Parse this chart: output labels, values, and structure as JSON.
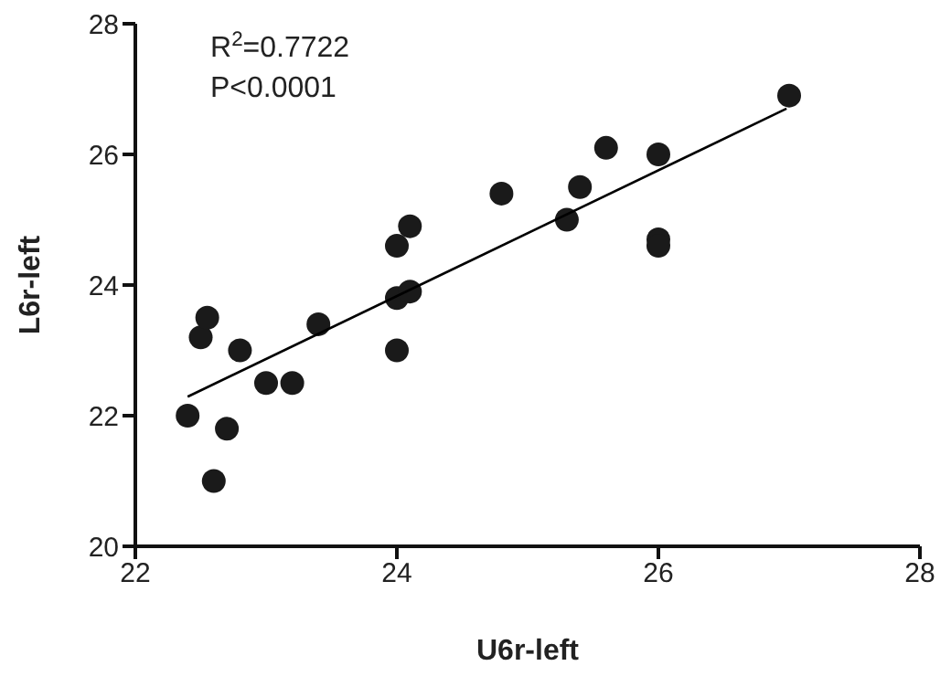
{
  "chart_data": {
    "type": "scatter",
    "xlabel": "U6r-left",
    "ylabel": "L6r-left",
    "xlim": [
      22,
      28
    ],
    "xticks": [
      22,
      24,
      26,
      28
    ],
    "ylim": [
      20,
      28
    ],
    "yticks": [
      20,
      22,
      24,
      26,
      28
    ],
    "marker": "circle",
    "annotations": [
      "R$^{2}$=0.7722",
      "P<0.0001"
    ],
    "series": [
      {
        "color": "#1a1a1a",
        "x": [
          22.4,
          22.5,
          22.55,
          22.6,
          22.7,
          22.8,
          23.0,
          23.2,
          23.4,
          24.0,
          24.0,
          24.0,
          24.1,
          24.1,
          24.8,
          25.3,
          25.4,
          25.6,
          26.0,
          26.0,
          26.0,
          27.0
        ],
        "values": [
          22.0,
          23.2,
          23.5,
          21.0,
          21.8,
          23.0,
          22.5,
          22.5,
          23.4,
          23.0,
          23.8,
          24.6,
          23.9,
          24.9,
          25.4,
          25.0,
          25.5,
          26.1,
          26.0,
          24.7,
          24.6,
          26.9
        ]
      },
      {
        "type": "line",
        "marker": "none",
        "color": "#000000",
        "x": [
          22.4,
          26.98
        ],
        "values": [
          22.29,
          26.7
        ]
      }
    ]
  }
}
